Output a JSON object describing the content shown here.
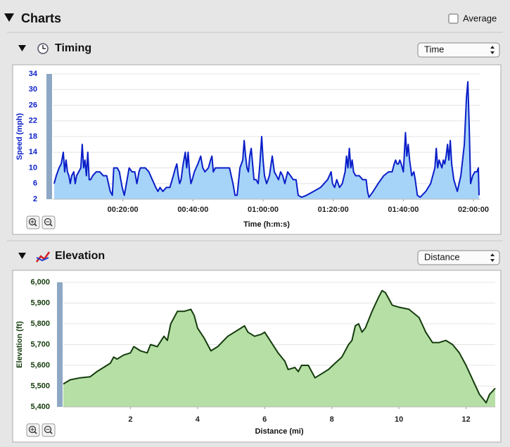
{
  "ui": {
    "header": "Charts",
    "average_label": "Average",
    "sections": [
      {
        "title": "Timing",
        "select": "Time"
      },
      {
        "title": "Elevation",
        "select": "Distance"
      }
    ]
  },
  "chart_data": [
    {
      "type": "area",
      "xlabel": "Time (h:m:s)",
      "ylabel": "Speed (mph)",
      "grid": true,
      "xlim": [
        0,
        7320
      ],
      "ylim": [
        2,
        34
      ],
      "xticks": [
        {
          "value": 1200,
          "label": "00:20:00"
        },
        {
          "value": 2400,
          "label": "00:40:00"
        },
        {
          "value": 3600,
          "label": "01:00:00"
        },
        {
          "value": 4800,
          "label": "01:20:00"
        },
        {
          "value": 6000,
          "label": "01:40:00"
        },
        {
          "value": 7200,
          "label": "02:00:00"
        }
      ],
      "yticks": [
        2,
        6,
        10,
        14,
        18,
        22,
        26,
        30,
        34
      ],
      "x": [
        24,
        60,
        108,
        144,
        180,
        204,
        228,
        252,
        276,
        300,
        324,
        360,
        384,
        408,
        444,
        480,
        504,
        528,
        552,
        576,
        600,
        624,
        648,
        684,
        744,
        804,
        864,
        924,
        984,
        1020,
        1044,
        1068,
        1104,
        1140,
        1164,
        1188,
        1224,
        1260,
        1308,
        1356,
        1404,
        1440,
        1476,
        1500,
        1524,
        1584,
        1644,
        1704,
        1764,
        1800,
        1836,
        1884,
        1944,
        2004,
        2064,
        2100,
        2124,
        2148,
        2172,
        2196,
        2232,
        2268,
        2292,
        2316,
        2340,
        2364,
        2388,
        2424,
        2484,
        2532,
        2568,
        2604,
        2664,
        2700,
        2724,
        2748,
        2784,
        2844,
        2964,
        3024,
        3084,
        3120,
        3156,
        3204,
        3252,
        3276,
        3300,
        3324,
        3348,
        3372,
        3396,
        3420,
        3444,
        3480,
        3516,
        3540,
        3576,
        3600,
        3624,
        3660,
        3708,
        3756,
        3792,
        3828,
        3864,
        3900,
        3936,
        3972,
        4020,
        4068,
        4116,
        4164,
        4200,
        4260,
        4344,
        4464,
        4584,
        4704,
        4764,
        4788,
        4824,
        4860,
        4908,
        4956,
        5004,
        5028,
        5052,
        5076,
        5100,
        5124,
        5148,
        5184,
        5244,
        5304,
        5364,
        5388,
        5412,
        5484,
        5568,
        5664,
        5748,
        5808,
        5844,
        5868,
        5892,
        5916,
        5940,
        5964,
        6000,
        6036,
        6060,
        6084,
        6108,
        6144,
        6180,
        6204,
        6240,
        6288,
        6384,
        6468,
        6504,
        6540,
        6564,
        6588,
        6612,
        6636,
        6660,
        6684,
        6708,
        6732,
        6756,
        6780,
        6804,
        6828,
        6864,
        6924,
        6984,
        7044,
        7080,
        7104,
        7128,
        7152,
        7188,
        7224,
        7260,
        7284,
        7296
      ],
      "series": [
        {
          "name": "Speed (mph)",
          "color": "#0a1ec8",
          "fill_color": "#a6d3f8",
          "values": [
            6,
            8,
            10,
            11,
            14,
            9,
            12,
            9,
            8,
            6,
            8,
            9,
            6,
            8,
            9,
            10,
            16,
            10,
            12,
            8,
            14,
            7,
            7,
            8,
            9,
            9,
            8,
            8,
            4,
            3,
            10,
            10,
            10,
            9,
            7,
            5,
            3,
            6,
            10,
            9,
            9,
            6,
            9,
            10,
            10,
            10,
            9,
            7,
            5,
            4,
            5,
            4,
            5,
            5,
            8,
            10,
            11,
            8,
            6,
            7,
            11,
            14,
            10,
            14,
            9,
            6,
            7,
            9,
            11,
            13,
            10,
            9,
            10,
            12,
            13,
            9,
            10,
            10,
            10,
            10,
            6,
            3,
            3,
            10,
            12,
            17,
            13,
            10,
            9,
            13,
            15,
            11,
            7,
            7,
            6,
            10,
            18,
            12,
            8,
            6,
            8,
            13,
            9,
            8,
            7,
            9,
            8,
            6,
            9,
            8,
            7,
            7,
            3,
            2.5,
            3,
            4,
            5,
            7,
            9,
            6,
            5,
            7,
            5,
            6,
            9,
            13,
            10,
            15,
            10,
            12,
            9,
            8,
            8,
            7,
            7,
            4,
            2.5,
            4,
            6,
            8,
            9,
            9,
            11,
            12,
            11,
            11,
            12,
            11,
            9,
            19,
            13,
            16,
            12,
            8,
            9,
            7,
            3,
            2.5,
            4,
            6,
            8,
            10,
            15,
            10,
            12,
            11,
            10,
            12,
            11,
            13,
            16,
            12,
            17,
            11,
            7,
            4,
            8,
            16,
            28,
            32,
            20,
            6,
            8,
            9,
            9,
            10,
            3
          ]
        }
      ]
    },
    {
      "type": "area",
      "xlabel": "Distance (mi)",
      "ylabel": "Elevation (ft)",
      "grid": true,
      "xlim": [
        0,
        12.87
      ],
      "ylim": [
        5400,
        6000
      ],
      "xticks": [
        2,
        4,
        6,
        8,
        10,
        12
      ],
      "yticks": [
        {
          "value": 5400,
          "label": "5,400"
        },
        {
          "value": 5500,
          "label": "5,500"
        },
        {
          "value": 5600,
          "label": "5,600"
        },
        {
          "value": 5700,
          "label": "5,700"
        },
        {
          "value": 5800,
          "label": "5,800"
        },
        {
          "value": 5900,
          "label": "5,900"
        },
        {
          "value": 6000,
          "label": "6,000"
        }
      ],
      "x": [
        0,
        0.2,
        0.5,
        0.8,
        1.0,
        1.2,
        1.4,
        1.5,
        1.6,
        1.8,
        2.0,
        2.1,
        2.3,
        2.5,
        2.6,
        2.8,
        3.0,
        3.1,
        3.2,
        3.4,
        3.6,
        3.8,
        3.9,
        4.0,
        4.2,
        4.3,
        4.4,
        4.6,
        4.9,
        5.2,
        5.4,
        5.5,
        5.7,
        5.9,
        6.0,
        6.2,
        6.4,
        6.6,
        6.7,
        6.9,
        7.0,
        7.1,
        7.3,
        7.5,
        7.7,
        7.9,
        8.1,
        8.3,
        8.5,
        8.6,
        8.7,
        8.8,
        8.9,
        9.0,
        9.2,
        9.4,
        9.5,
        9.6,
        9.7,
        9.8,
        10.0,
        10.3,
        10.6,
        10.8,
        11.0,
        11.2,
        11.4,
        11.6,
        11.8,
        12.0,
        12.2,
        12.4,
        12.6,
        12.7,
        12.87
      ],
      "series": [
        {
          "name": "Elevation (ft)",
          "color": "#143c0c",
          "fill_color": "#b6dfa6",
          "values": [
            5510,
            5530,
            5540,
            5545,
            5570,
            5590,
            5610,
            5640,
            5630,
            5650,
            5660,
            5690,
            5670,
            5660,
            5700,
            5690,
            5740,
            5720,
            5800,
            5860,
            5860,
            5870,
            5840,
            5780,
            5730,
            5700,
            5670,
            5690,
            5740,
            5770,
            5790,
            5760,
            5740,
            5750,
            5760,
            5710,
            5660,
            5620,
            5580,
            5590,
            5570,
            5600,
            5600,
            5540,
            5560,
            5580,
            5610,
            5640,
            5700,
            5720,
            5790,
            5800,
            5760,
            5780,
            5860,
            5930,
            5960,
            5950,
            5920,
            5890,
            5880,
            5870,
            5830,
            5760,
            5710,
            5710,
            5720,
            5700,
            5660,
            5600,
            5530,
            5460,
            5420,
            5460,
            5490
          ]
        }
      ]
    }
  ]
}
